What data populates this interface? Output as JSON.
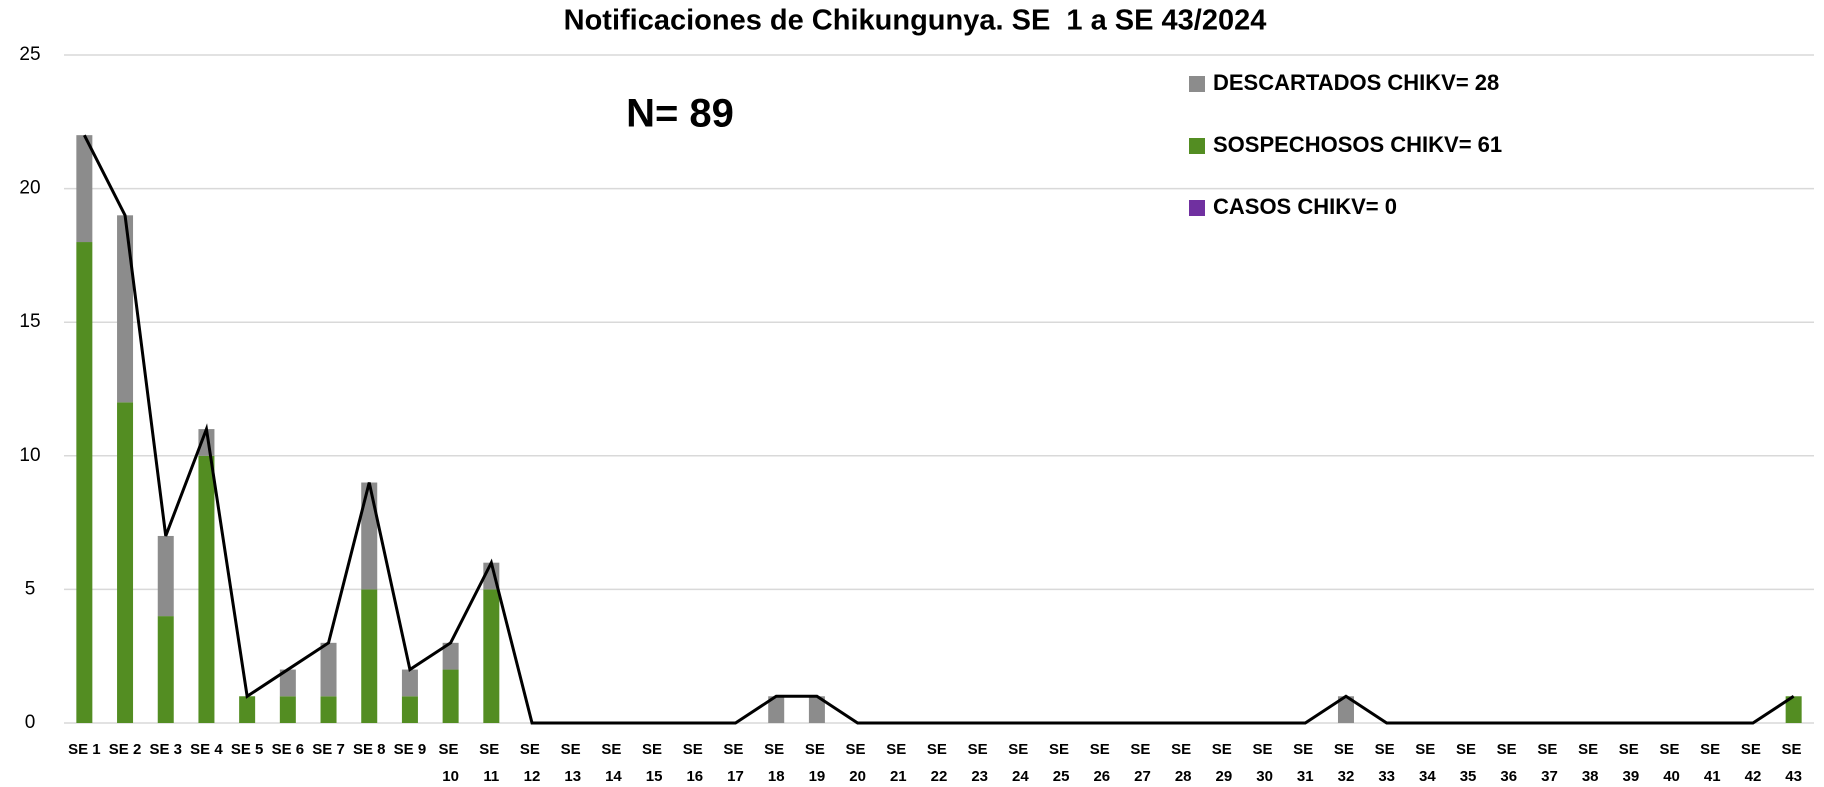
{
  "chart_data": {
    "type": "bar",
    "stacked": true,
    "title": "Notificaciones de Chikungunya. SE  1 a SE 43/2024",
    "annotation": "N= 89",
    "categories": [
      "SE 1",
      "SE 2",
      "SE 3",
      "SE 4",
      "SE 5",
      "SE 6",
      "SE 7",
      "SE 8",
      "SE 9",
      "SE 10",
      "SE 11",
      "SE 12",
      "SE 13",
      "SE 14",
      "SE 15",
      "SE 16",
      "SE 17",
      "SE 18",
      "SE 19",
      "SE 20",
      "SE 21",
      "SE 22",
      "SE 23",
      "SE 24",
      "SE 25",
      "SE 26",
      "SE 27",
      "SE 28",
      "SE 29",
      "SE 30",
      "SE 31",
      "SE 32",
      "SE 33",
      "SE 34",
      "SE 35",
      "SE 36",
      "SE 37",
      "SE 38",
      "SE 39",
      "SE 40",
      "SE 41",
      "SE 42",
      "SE 43"
    ],
    "series": [
      {
        "name": "DESCARTADOS CHIKV= 28",
        "color": "#8c8c8c",
        "values": [
          4,
          7,
          3,
          1,
          0,
          1,
          2,
          4,
          1,
          1,
          1,
          0,
          0,
          0,
          0,
          0,
          0,
          1,
          1,
          0,
          0,
          0,
          0,
          0,
          0,
          0,
          0,
          0,
          0,
          0,
          0,
          1,
          0,
          0,
          0,
          0,
          0,
          0,
          0,
          0,
          0,
          0,
          0
        ]
      },
      {
        "name": "SOSPECHOSOS CHIKV= 61",
        "color": "#538d22",
        "values": [
          18,
          12,
          4,
          10,
          1,
          1,
          1,
          5,
          1,
          2,
          5,
          0,
          0,
          0,
          0,
          0,
          0,
          0,
          0,
          0,
          0,
          0,
          0,
          0,
          0,
          0,
          0,
          0,
          0,
          0,
          0,
          0,
          0,
          0,
          0,
          0,
          0,
          0,
          0,
          0,
          0,
          0,
          1
        ]
      },
      {
        "name": "CASOS CHIKV= 0",
        "color": "#7030a0",
        "values": [
          0,
          0,
          0,
          0,
          0,
          0,
          0,
          0,
          0,
          0,
          0,
          0,
          0,
          0,
          0,
          0,
          0,
          0,
          0,
          0,
          0,
          0,
          0,
          0,
          0,
          0,
          0,
          0,
          0,
          0,
          0,
          0,
          0,
          0,
          0,
          0,
          0,
          0,
          0,
          0,
          0,
          0,
          0
        ]
      }
    ],
    "line": {
      "color": "#000000",
      "values": [
        22,
        19,
        7,
        11,
        1,
        2,
        3,
        9,
        2,
        3,
        6,
        0,
        0,
        0,
        0,
        0,
        0,
        1,
        1,
        0,
        0,
        0,
        0,
        0,
        0,
        0,
        0,
        0,
        0,
        0,
        0,
        1,
        0,
        0,
        0,
        0,
        0,
        0,
        0,
        0,
        0,
        0,
        1
      ]
    },
    "ylim": [
      0,
      25
    ],
    "yticks": [
      0,
      5,
      10,
      15,
      20,
      25
    ],
    "grid": true
  }
}
